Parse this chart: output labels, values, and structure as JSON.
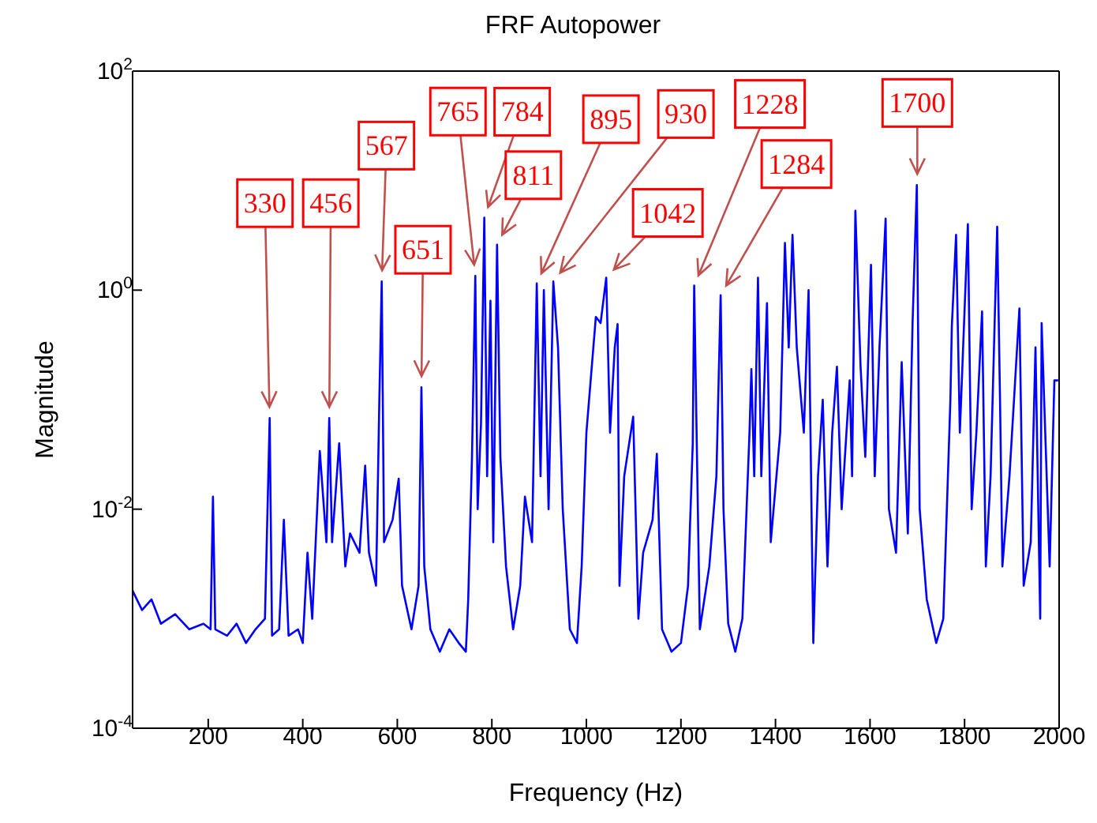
{
  "chart_data": {
    "type": "line",
    "title": "FRF Autopower",
    "xlabel": "Frequency (Hz)",
    "ylabel": "Magnitude",
    "log": "y",
    "xlim": [
      40,
      2000
    ],
    "xticks": [
      200,
      400,
      600,
      800,
      1000,
      1200,
      1400,
      1600,
      1800,
      2000
    ],
    "ylim": [
      0.0001,
      100
    ],
    "yticks": [
      {
        "value": 0.0001,
        "label": "10$^{-4}$"
      },
      {
        "value": 0.01,
        "label": "10$^{-2}$"
      },
      {
        "value": 1,
        "label": "10$^{0}$"
      },
      {
        "value": 100,
        "label": "10$^{2}$"
      }
    ],
    "x": [
      40,
      60,
      80,
      100,
      130,
      160,
      190,
      205,
      210,
      215,
      240,
      260,
      280,
      300,
      320,
      330,
      335,
      350,
      360,
      370,
      390,
      400,
      410,
      420,
      436,
      450,
      456,
      462,
      477,
      490,
      500,
      520,
      532,
      540,
      555,
      562,
      567,
      572,
      590,
      603,
      610,
      630,
      645,
      651,
      657,
      670,
      690,
      710,
      730,
      745,
      750,
      758,
      765,
      770,
      777,
      784,
      790,
      797,
      803,
      811,
      818,
      830,
      845,
      860,
      870,
      885,
      895,
      903,
      910,
      920,
      930,
      940,
      950,
      965,
      980,
      990,
      1000,
      1020,
      1030,
      1042,
      1050,
      1060,
      1066,
      1070,
      1080,
      1099,
      1110,
      1120,
      1140,
      1149,
      1160,
      1180,
      1200,
      1215,
      1225,
      1228,
      1240,
      1260,
      1275,
      1284,
      1290,
      1300,
      1315,
      1330,
      1345,
      1349,
      1355,
      1363,
      1370,
      1382,
      1390,
      1410,
      1420,
      1428,
      1436,
      1445,
      1460,
      1470,
      1480,
      1490,
      1500,
      1510,
      1520,
      1530,
      1540,
      1557,
      1562,
      1569,
      1580,
      1590,
      1602,
      1610,
      1620,
      1633,
      1640,
      1655,
      1667,
      1680,
      1690,
      1699,
      1705,
      1720,
      1740,
      1755,
      1770,
      1773,
      1782,
      1790,
      1807,
      1815,
      1825,
      1837,
      1845,
      1855,
      1869,
      1875,
      1880,
      1895,
      1916,
      1925,
      1940,
      1950,
      1960,
      1963,
      1980,
      1990,
      1998
    ],
    "series": [
      {
        "color": "#0000ff",
        "values": [
          0.0018,
          0.0012,
          0.0015,
          0.0009,
          0.0011,
          0.0008,
          0.0009,
          0.0008,
          0.013,
          0.0008,
          0.0007,
          0.0009,
          0.0006,
          0.0008,
          0.001,
          0.068,
          0.0007,
          0.0008,
          0.008,
          0.0007,
          0.0008,
          0.0006,
          0.004,
          0.001,
          0.034,
          0.005,
          0.068,
          0.005,
          0.04,
          0.003,
          0.006,
          0.004,
          0.025,
          0.004,
          0.002,
          0.1,
          1.2,
          0.005,
          0.008,
          0.019,
          0.002,
          0.0008,
          0.002,
          0.13,
          0.003,
          0.0008,
          0.0005,
          0.0008,
          0.0006,
          0.0005,
          0.0015,
          0.03,
          1.35,
          0.01,
          0.06,
          4.6,
          0.02,
          0.8,
          0.005,
          2.6,
          0.03,
          0.003,
          0.0008,
          0.002,
          0.013,
          0.005,
          1.15,
          0.02,
          1,
          0.01,
          1.2,
          0.3,
          0.01,
          0.0008,
          0.0006,
          0.003,
          0.05,
          0.57,
          0.5,
          1.3,
          0.05,
          0.3,
          0.49,
          0.002,
          0.02,
          0.07,
          0.001,
          0.004,
          0.008,
          0.032,
          0.0008,
          0.0005,
          0.0006,
          0.002,
          0.04,
          1.1,
          0.0008,
          0.003,
          0.02,
          0.9,
          0.01,
          0.0009,
          0.0005,
          0.001,
          0.05,
          0.19,
          0.02,
          1.3,
          0.02,
          0.76,
          0.005,
          0.05,
          2.7,
          0.3,
          3.2,
          0.3,
          0.05,
          1,
          0.0006,
          0.02,
          0.1,
          0.003,
          0.05,
          0.2,
          0.01,
          0.15,
          0.02,
          5.3,
          0.2,
          0.03,
          1.7,
          0.02,
          0.3,
          4.5,
          0.01,
          0.004,
          0.22,
          0.006,
          0.5,
          9.1,
          0.01,
          0.0015,
          0.0006,
          0.001,
          0.1,
          0.46,
          3.2,
          0.05,
          4,
          0.01,
          0.05,
          0.64,
          0.003,
          0.02,
          3.8,
          0.1,
          0.003,
          0.02,
          0.68,
          0.002,
          0.005,
          0.3,
          0.001,
          0.5,
          0.003,
          0.15,
          0.15
        ]
      }
    ],
    "annotations": [
      {
        "text": "330",
        "x": 330,
        "y": 0.068
      },
      {
        "text": "456",
        "x": 456,
        "y": 0.068
      },
      {
        "text": "567",
        "x": 567,
        "y": 1.2
      },
      {
        "text": "651",
        "x": 651,
        "y": 0.13
      },
      {
        "text": "765",
        "x": 765,
        "y": 1.35
      },
      {
        "text": "784",
        "x": 784,
        "y": 4.6
      },
      {
        "text": "811",
        "x": 811,
        "y": 2.6
      },
      {
        "text": "895",
        "x": 895,
        "y": 1.15
      },
      {
        "text": "930",
        "x": 930,
        "y": 1.2
      },
      {
        "text": "1042",
        "x": 1042,
        "y": 1.3
      },
      {
        "text": "1228",
        "x": 1228,
        "y": 1.1
      },
      {
        "text": "1284",
        "x": 1284,
        "y": 0.9
      },
      {
        "text": "1700",
        "x": 1700,
        "y": 9.1
      }
    ]
  }
}
